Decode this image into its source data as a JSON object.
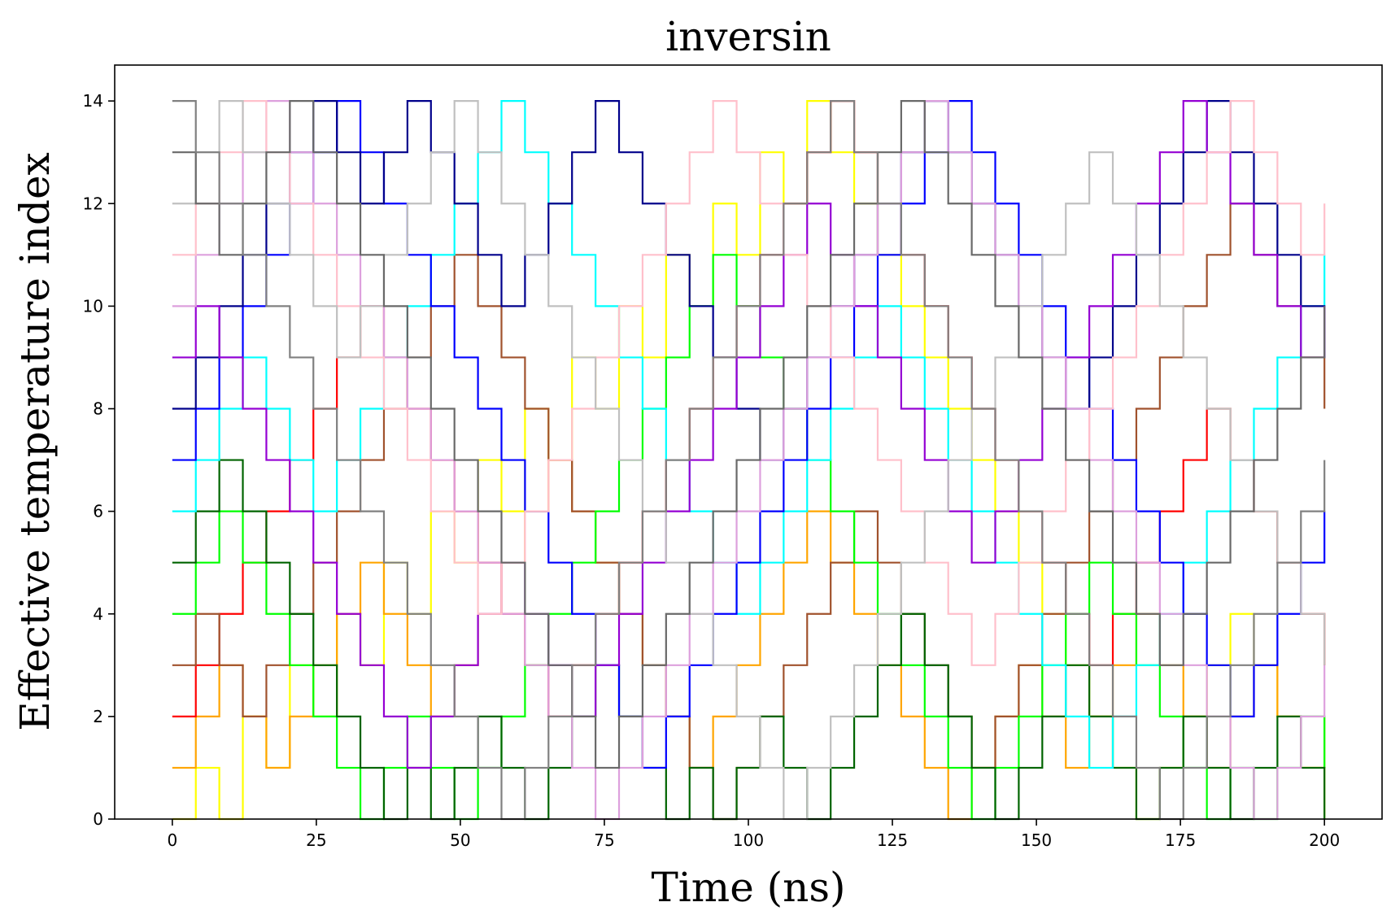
{
  "chart_data": {
    "type": "line",
    "title": "inversin",
    "xlabel": "Time (ns)",
    "ylabel": "Effective temperature index",
    "xlim": [
      -10,
      210
    ],
    "ylim": [
      0,
      14.7
    ],
    "xticks": [
      0,
      25,
      50,
      75,
      100,
      125,
      150,
      175,
      200
    ],
    "xtick_labels": [
      "0",
      "25",
      "50",
      "75",
      "100",
      "125",
      "150",
      "175",
      "200"
    ],
    "yticks": [
      0,
      2,
      4,
      6,
      8,
      10,
      12,
      14
    ],
    "ytick_labels": [
      "0",
      "2",
      "4",
      "6",
      "8",
      "10",
      "12",
      "14"
    ],
    "grid": false,
    "legend": "none",
    "time_range": [
      0,
      200
    ],
    "series": [
      {
        "color": "#ffff00",
        "values": [
          0,
          1,
          0,
          2,
          1,
          3,
          2,
          4,
          3,
          5,
          4,
          6,
          5,
          7,
          6,
          8,
          7,
          9,
          8,
          10,
          9,
          11,
          10,
          12,
          11,
          13,
          12,
          14,
          13,
          12,
          11,
          10,
          9,
          8,
          7,
          6,
          5,
          4,
          3,
          2,
          1,
          0,
          1,
          2,
          3,
          4,
          3,
          2,
          1,
          0
        ]
      },
      {
        "color": "#ffa500",
        "values": [
          1,
          2,
          3,
          2,
          1,
          2,
          3,
          4,
          5,
          4,
          3,
          2,
          3,
          4,
          5,
          6,
          7,
          6,
          5,
          4,
          3,
          2,
          1,
          2,
          3,
          4,
          5,
          6,
          5,
          4,
          3,
          2,
          1,
          0,
          1,
          2,
          3,
          2,
          1,
          2,
          3,
          4,
          3,
          2,
          1,
          2,
          3,
          2,
          1,
          2
        ]
      },
      {
        "color": "#ff0000",
        "values": [
          2,
          3,
          4,
          5,
          6,
          7,
          8,
          9,
          10,
          9,
          8,
          7,
          6,
          5,
          4,
          3,
          2,
          3,
          4,
          5,
          6,
          7,
          8,
          9,
          10,
          11,
          12,
          13,
          14,
          13,
          12,
          11,
          10,
          9,
          8,
          7,
          6,
          5,
          4,
          3,
          4,
          5,
          6,
          7,
          8,
          7,
          6,
          5,
          4,
          3
        ]
      },
      {
        "color": "#a0522d",
        "values": [
          3,
          4,
          3,
          2,
          3,
          4,
          5,
          6,
          7,
          8,
          9,
          10,
          11,
          10,
          9,
          8,
          7,
          6,
          5,
          4,
          3,
          2,
          1,
          0,
          1,
          2,
          3,
          4,
          5,
          6,
          5,
          4,
          3,
          2,
          1,
          2,
          3,
          4,
          5,
          6,
          7,
          8,
          9,
          10,
          11,
          12,
          11,
          10,
          9,
          8
        ]
      },
      {
        "color": "#00ff00",
        "values": [
          4,
          5,
          6,
          5,
          4,
          3,
          2,
          1,
          0,
          1,
          2,
          1,
          0,
          1,
          2,
          3,
          4,
          5,
          6,
          7,
          8,
          9,
          10,
          11,
          10,
          9,
          8,
          7,
          6,
          5,
          4,
          3,
          2,
          1,
          0,
          1,
          2,
          3,
          4,
          5,
          4,
          3,
          2,
          1,
          0,
          1,
          0,
          1,
          2,
          1
        ]
      },
      {
        "color": "#006400",
        "values": [
          5,
          6,
          7,
          6,
          5,
          4,
          3,
          2,
          1,
          0,
          1,
          0,
          1,
          2,
          1,
          0,
          1,
          2,
          3,
          2,
          1,
          0,
          1,
          0,
          1,
          2,
          1,
          0,
          1,
          2,
          3,
          4,
          3,
          2,
          1,
          0,
          1,
          2,
          3,
          2,
          1,
          0,
          1,
          2,
          1,
          0,
          1,
          2,
          1,
          0
        ]
      },
      {
        "color": "#00ffff",
        "values": [
          6,
          7,
          8,
          9,
          8,
          7,
          6,
          7,
          8,
          9,
          10,
          11,
          12,
          13,
          14,
          13,
          12,
          11,
          10,
          9,
          8,
          7,
          6,
          5,
          4,
          5,
          6,
          7,
          8,
          9,
          10,
          9,
          8,
          7,
          6,
          5,
          4,
          3,
          2,
          1,
          2,
          3,
          4,
          5,
          6,
          7,
          8,
          9,
          10,
          11
        ]
      },
      {
        "color": "#0000ff",
        "values": [
          7,
          8,
          9,
          10,
          11,
          12,
          13,
          14,
          13,
          12,
          11,
          10,
          9,
          8,
          7,
          6,
          5,
          4,
          3,
          2,
          1,
          2,
          3,
          4,
          5,
          6,
          7,
          8,
          9,
          10,
          11,
          12,
          13,
          14,
          13,
          12,
          11,
          10,
          9,
          8,
          7,
          6,
          5,
          4,
          3,
          2,
          3,
          4,
          5,
          6
        ]
      },
      {
        "color": "#00008b",
        "values": [
          8,
          9,
          10,
          11,
          12,
          13,
          14,
          13,
          12,
          13,
          14,
          13,
          12,
          11,
          10,
          11,
          12,
          13,
          14,
          13,
          12,
          11,
          10,
          9,
          8,
          7,
          8,
          9,
          10,
          11,
          12,
          13,
          14,
          13,
          12,
          11,
          10,
          9,
          8,
          9,
          10,
          11,
          12,
          13,
          14,
          13,
          12,
          11,
          10,
          9
        ]
      },
      {
        "color": "#9400d3",
        "values": [
          9,
          10,
          9,
          8,
          7,
          6,
          5,
          4,
          3,
          2,
          1,
          2,
          3,
          4,
          5,
          4,
          3,
          2,
          3,
          4,
          5,
          6,
          7,
          8,
          9,
          10,
          11,
          12,
          11,
          10,
          9,
          8,
          7,
          6,
          5,
          6,
          7,
          8,
          9,
          10,
          11,
          12,
          13,
          14,
          13,
          12,
          11,
          10,
          9,
          10
        ]
      },
      {
        "color": "#dda0dd",
        "values": [
          10,
          11,
          12,
          13,
          14,
          13,
          12,
          11,
          10,
          9,
          8,
          7,
          6,
          5,
          4,
          3,
          2,
          1,
          0,
          1,
          2,
          3,
          4,
          5,
          6,
          7,
          8,
          9,
          10,
          11,
          12,
          13,
          14,
          13,
          12,
          11,
          10,
          9,
          8,
          7,
          6,
          5,
          4,
          3,
          2,
          1,
          0,
          1,
          2,
          3
        ]
      },
      {
        "color": "#ffc0cb",
        "values": [
          11,
          12,
          13,
          14,
          13,
          12,
          11,
          10,
          9,
          8,
          7,
          6,
          5,
          4,
          5,
          6,
          7,
          8,
          9,
          10,
          11,
          12,
          13,
          14,
          13,
          12,
          11,
          10,
          9,
          8,
          7,
          6,
          5,
          4,
          3,
          4,
          5,
          6,
          7,
          8,
          9,
          10,
          11,
          12,
          13,
          14,
          13,
          12,
          11,
          12
        ]
      },
      {
        "color": "#c0c0c0",
        "values": [
          12,
          13,
          14,
          13,
          12,
          11,
          10,
          9,
          10,
          11,
          12,
          13,
          14,
          13,
          12,
          11,
          10,
          9,
          8,
          7,
          6,
          5,
          4,
          3,
          2,
          1,
          0,
          1,
          2,
          3,
          4,
          5,
          6,
          7,
          8,
          9,
          10,
          11,
          12,
          13,
          12,
          11,
          10,
          9,
          8,
          7,
          6,
          5,
          4,
          3
        ]
      },
      {
        "color": "#696969",
        "values": [
          13,
          12,
          11,
          12,
          13,
          14,
          13,
          12,
          11,
          10,
          9,
          8,
          7,
          6,
          5,
          4,
          3,
          2,
          1,
          2,
          3,
          4,
          5,
          6,
          7,
          8,
          9,
          10,
          11,
          12,
          13,
          14,
          13,
          12,
          11,
          10,
          9,
          8,
          7,
          6,
          5,
          4,
          3,
          4,
          5,
          6,
          7,
          8,
          9,
          10
        ]
      },
      {
        "color": "#808080",
        "values": [
          14,
          13,
          12,
          11,
          10,
          9,
          8,
          7,
          6,
          5,
          4,
          3,
          2,
          1,
          0,
          1,
          2,
          3,
          4,
          5,
          6,
          7,
          8,
          9,
          10,
          11,
          12,
          13,
          14,
          13,
          12,
          11,
          10,
          9,
          8,
          7,
          6,
          5,
          4,
          3,
          2,
          1,
          0,
          1,
          2,
          3,
          4,
          5,
          6,
          7
        ]
      }
    ]
  }
}
